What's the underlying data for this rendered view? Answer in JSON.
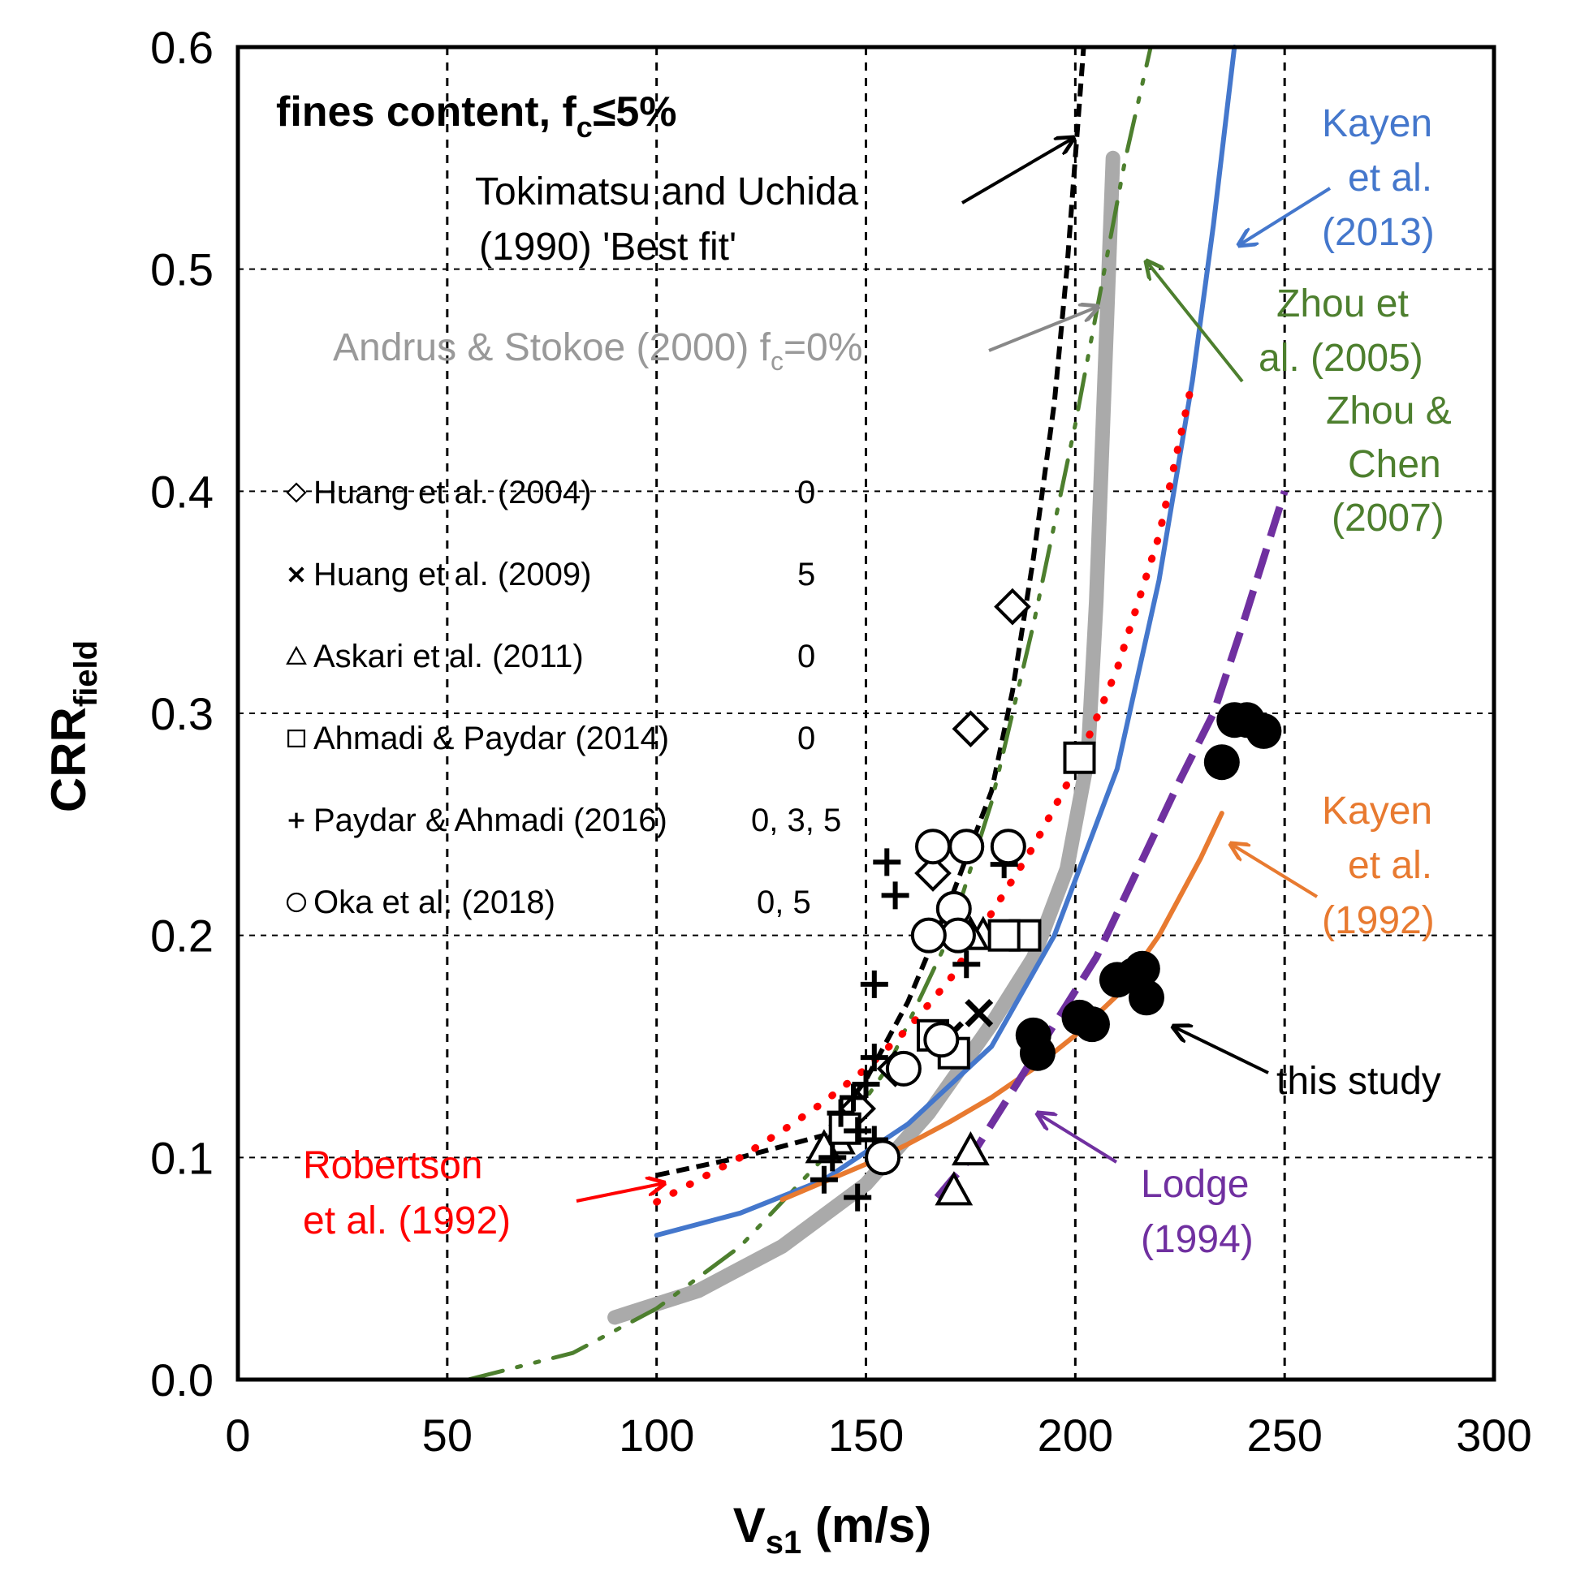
{
  "chart_data": {
    "type": "scatter",
    "xlabel": "V",
    "xlabel_sub": "s1",
    "xlabel_unit": " (m/s)",
    "ylabel": "CRR",
    "ylabel_sub": "field",
    "xlim": [
      0,
      300
    ],
    "ylim": [
      0,
      0.6
    ],
    "x_ticks": [
      "0",
      "50",
      "100",
      "150",
      "200",
      "250",
      "300"
    ],
    "y_ticks": [
      "0.0",
      "0.1",
      "0.2",
      "0.3",
      "0.4",
      "0.5",
      "0.6"
    ],
    "grid": "dashed",
    "header": {
      "text": "fines content, f",
      "sub": "c",
      "tail": "≤5%"
    },
    "curves": [
      {
        "label": [
          "Tokimatsu and Uchida",
          " (1990) 'Best fit'"
        ],
        "color": "#000000",
        "points": [
          [
            100,
            0.092
          ],
          [
            120,
            0.1
          ],
          [
            140,
            0.11
          ],
          [
            150,
            0.135
          ],
          [
            160,
            0.17
          ],
          [
            170,
            0.215
          ],
          [
            180,
            0.265
          ],
          [
            185,
            0.31
          ],
          [
            190,
            0.37
          ],
          [
            195,
            0.44
          ],
          [
            198,
            0.5
          ],
          [
            200,
            0.55
          ],
          [
            202,
            0.6
          ]
        ]
      },
      {
        "label": [
          "Andrus  & Stokoe (2000) f",
          "c",
          "=0%"
        ],
        "color": "#aaaaaa",
        "points": [
          [
            90,
            0.028
          ],
          [
            110,
            0.04
          ],
          [
            130,
            0.06
          ],
          [
            150,
            0.088
          ],
          [
            165,
            0.12
          ],
          [
            180,
            0.16
          ],
          [
            190,
            0.19
          ],
          [
            198,
            0.23
          ],
          [
            203,
            0.28
          ],
          [
            205,
            0.35
          ],
          [
            207,
            0.45
          ],
          [
            209,
            0.55
          ]
        ]
      },
      {
        "label": [
          "Zhou et",
          "al. (2005)",
          "Zhou &",
          "Chen",
          "(2007)"
        ],
        "color": "#4d7f2e",
        "points": [
          [
            55,
            0.0
          ],
          [
            80,
            0.012
          ],
          [
            100,
            0.032
          ],
          [
            120,
            0.06
          ],
          [
            140,
            0.1
          ],
          [
            155,
            0.14
          ],
          [
            170,
            0.2
          ],
          [
            180,
            0.26
          ],
          [
            190,
            0.34
          ],
          [
            200,
            0.43
          ],
          [
            207,
            0.5
          ],
          [
            212,
            0.55
          ],
          [
            218,
            0.6
          ]
        ]
      },
      {
        "label": [
          "Kayen",
          "et al.",
          "(2013)"
        ],
        "color": "#4477cc",
        "points": [
          [
            100,
            0.065
          ],
          [
            120,
            0.075
          ],
          [
            140,
            0.09
          ],
          [
            160,
            0.115
          ],
          [
            180,
            0.15
          ],
          [
            195,
            0.2
          ],
          [
            210,
            0.275
          ],
          [
            220,
            0.36
          ],
          [
            228,
            0.45
          ],
          [
            233,
            0.52
          ],
          [
            238,
            0.6
          ]
        ]
      },
      {
        "label": [
          "Robertson",
          "et al. (1992)"
        ],
        "color": "#ff0000",
        "points": [
          [
            100,
            0.08
          ],
          [
            110,
            0.09
          ],
          [
            120,
            0.1
          ],
          [
            130,
            0.112
          ],
          [
            140,
            0.125
          ],
          [
            150,
            0.14
          ],
          [
            160,
            0.158
          ],
          [
            170,
            0.18
          ],
          [
            180,
            0.21
          ],
          [
            190,
            0.24
          ],
          [
            200,
            0.275
          ],
          [
            210,
            0.32
          ],
          [
            220,
            0.38
          ],
          [
            228,
            0.45
          ]
        ]
      },
      {
        "label": [
          "Kayen",
          "et al.",
          "(1992)"
        ],
        "color": "#e87a30",
        "points": [
          [
            130,
            0.081
          ],
          [
            140,
            0.089
          ],
          [
            150,
            0.097
          ],
          [
            160,
            0.106
          ],
          [
            170,
            0.116
          ],
          [
            180,
            0.127
          ],
          [
            190,
            0.14
          ],
          [
            200,
            0.155
          ],
          [
            210,
            0.173
          ],
          [
            220,
            0.2
          ],
          [
            230,
            0.235
          ],
          [
            235,
            0.255
          ]
        ]
      },
      {
        "label": [
          "Lodge",
          "(1994)"
        ],
        "color": "#7030a0",
        "points": [
          [
            167,
            0.082
          ],
          [
            175,
            0.1
          ],
          [
            185,
            0.13
          ],
          [
            195,
            0.16
          ],
          [
            205,
            0.19
          ],
          [
            215,
            0.23
          ],
          [
            225,
            0.27
          ],
          [
            233,
            0.3
          ],
          [
            240,
            0.34
          ],
          [
            245,
            0.37
          ],
          [
            250,
            0.4
          ]
        ]
      }
    ],
    "series": [
      {
        "name": "Huang et al. (2004)",
        "fc": "0",
        "marker": "diamond",
        "points": [
          [
            185,
            0.348
          ],
          [
            175,
            0.293
          ],
          [
            166,
            0.228
          ],
          [
            157,
            0.14
          ],
          [
            148,
            0.122
          ]
        ]
      },
      {
        "name": "Huang et al. (2009)",
        "fc": "5",
        "marker": "x",
        "points": [
          [
            177,
            0.165
          ],
          [
            170,
            0.155
          ]
        ]
      },
      {
        "name": "Askari et al. (2011)",
        "fc": "0",
        "marker": "triangle",
        "points": [
          [
            178,
            0.2
          ],
          [
            175,
            0.2
          ],
          [
            175,
            0.103
          ],
          [
            171,
            0.085
          ],
          [
            143,
            0.108
          ],
          [
            140,
            0.104
          ]
        ]
      },
      {
        "name": "Ahmadi & Paydar (2014)",
        "fc": "0",
        "marker": "square",
        "points": [
          [
            201,
            0.28
          ],
          [
            188,
            0.2
          ],
          [
            183,
            0.2
          ],
          [
            171,
            0.147
          ],
          [
            166,
            0.155
          ],
          [
            145,
            0.113
          ]
        ]
      },
      {
        "name": "Paydar & Ahmadi (2016)",
        "fc": "0, 3, 5",
        "marker": "plus",
        "points": [
          [
            155,
            0.233
          ],
          [
            157,
            0.218
          ],
          [
            152,
            0.178
          ],
          [
            152,
            0.145
          ],
          [
            150,
            0.133
          ],
          [
            147,
            0.127
          ],
          [
            144,
            0.12
          ],
          [
            148,
            0.112
          ],
          [
            152,
            0.108
          ],
          [
            142,
            0.1
          ],
          [
            140,
            0.09
          ],
          [
            148,
            0.082
          ],
          [
            183,
            0.232
          ],
          [
            174,
            0.187
          ]
        ]
      },
      {
        "name": "Oka et al. (2018)",
        "fc": "0, 5",
        "marker": "circle",
        "points": [
          [
            166,
            0.24
          ],
          [
            174,
            0.24
          ],
          [
            184,
            0.24
          ],
          [
            171,
            0.212
          ],
          [
            172,
            0.2
          ],
          [
            165,
            0.2
          ],
          [
            168,
            0.153
          ],
          [
            159,
            0.14
          ],
          [
            154,
            0.1
          ]
        ]
      },
      {
        "name": "this study",
        "marker": "dot",
        "points": [
          [
            190,
            0.155
          ],
          [
            191,
            0.147
          ],
          [
            201,
            0.163
          ],
          [
            204,
            0.16
          ],
          [
            210,
            0.18
          ],
          [
            214,
            0.182
          ],
          [
            216,
            0.185
          ],
          [
            217,
            0.172
          ],
          [
            235,
            0.278
          ],
          [
            238,
            0.297
          ],
          [
            241,
            0.297
          ],
          [
            245,
            0.292
          ]
        ]
      }
    ],
    "annotations": {
      "this_study": "this study"
    }
  }
}
